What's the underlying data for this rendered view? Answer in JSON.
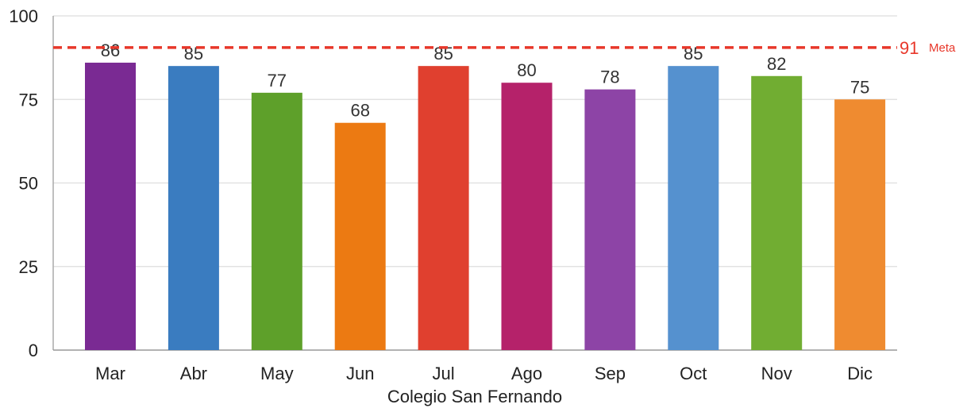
{
  "chart_data": {
    "type": "bar",
    "title": "",
    "xlabel": "Colegio San Fernando",
    "ylabel": "",
    "ylim": [
      0,
      100
    ],
    "yticks": [
      0,
      25,
      50,
      75,
      100
    ],
    "grid": true,
    "categories": [
      "Mar",
      "Abr",
      "May",
      "Jun",
      "Jul",
      "Ago",
      "Sep",
      "Oct",
      "Nov",
      "Dic"
    ],
    "values": [
      86,
      85,
      77,
      68,
      85,
      80,
      78,
      85,
      82,
      75
    ],
    "colors": [
      "#7a2a93",
      "#3a7cc0",
      "#5ea02a",
      "#ec7a12",
      "#e0402f",
      "#b5226a",
      "#8d44a6",
      "#5591cf",
      "#71ad32",
      "#ef8b30"
    ],
    "goal": {
      "value": 91,
      "value_label": "91",
      "label": "Meta",
      "color": "#e8372a"
    }
  }
}
